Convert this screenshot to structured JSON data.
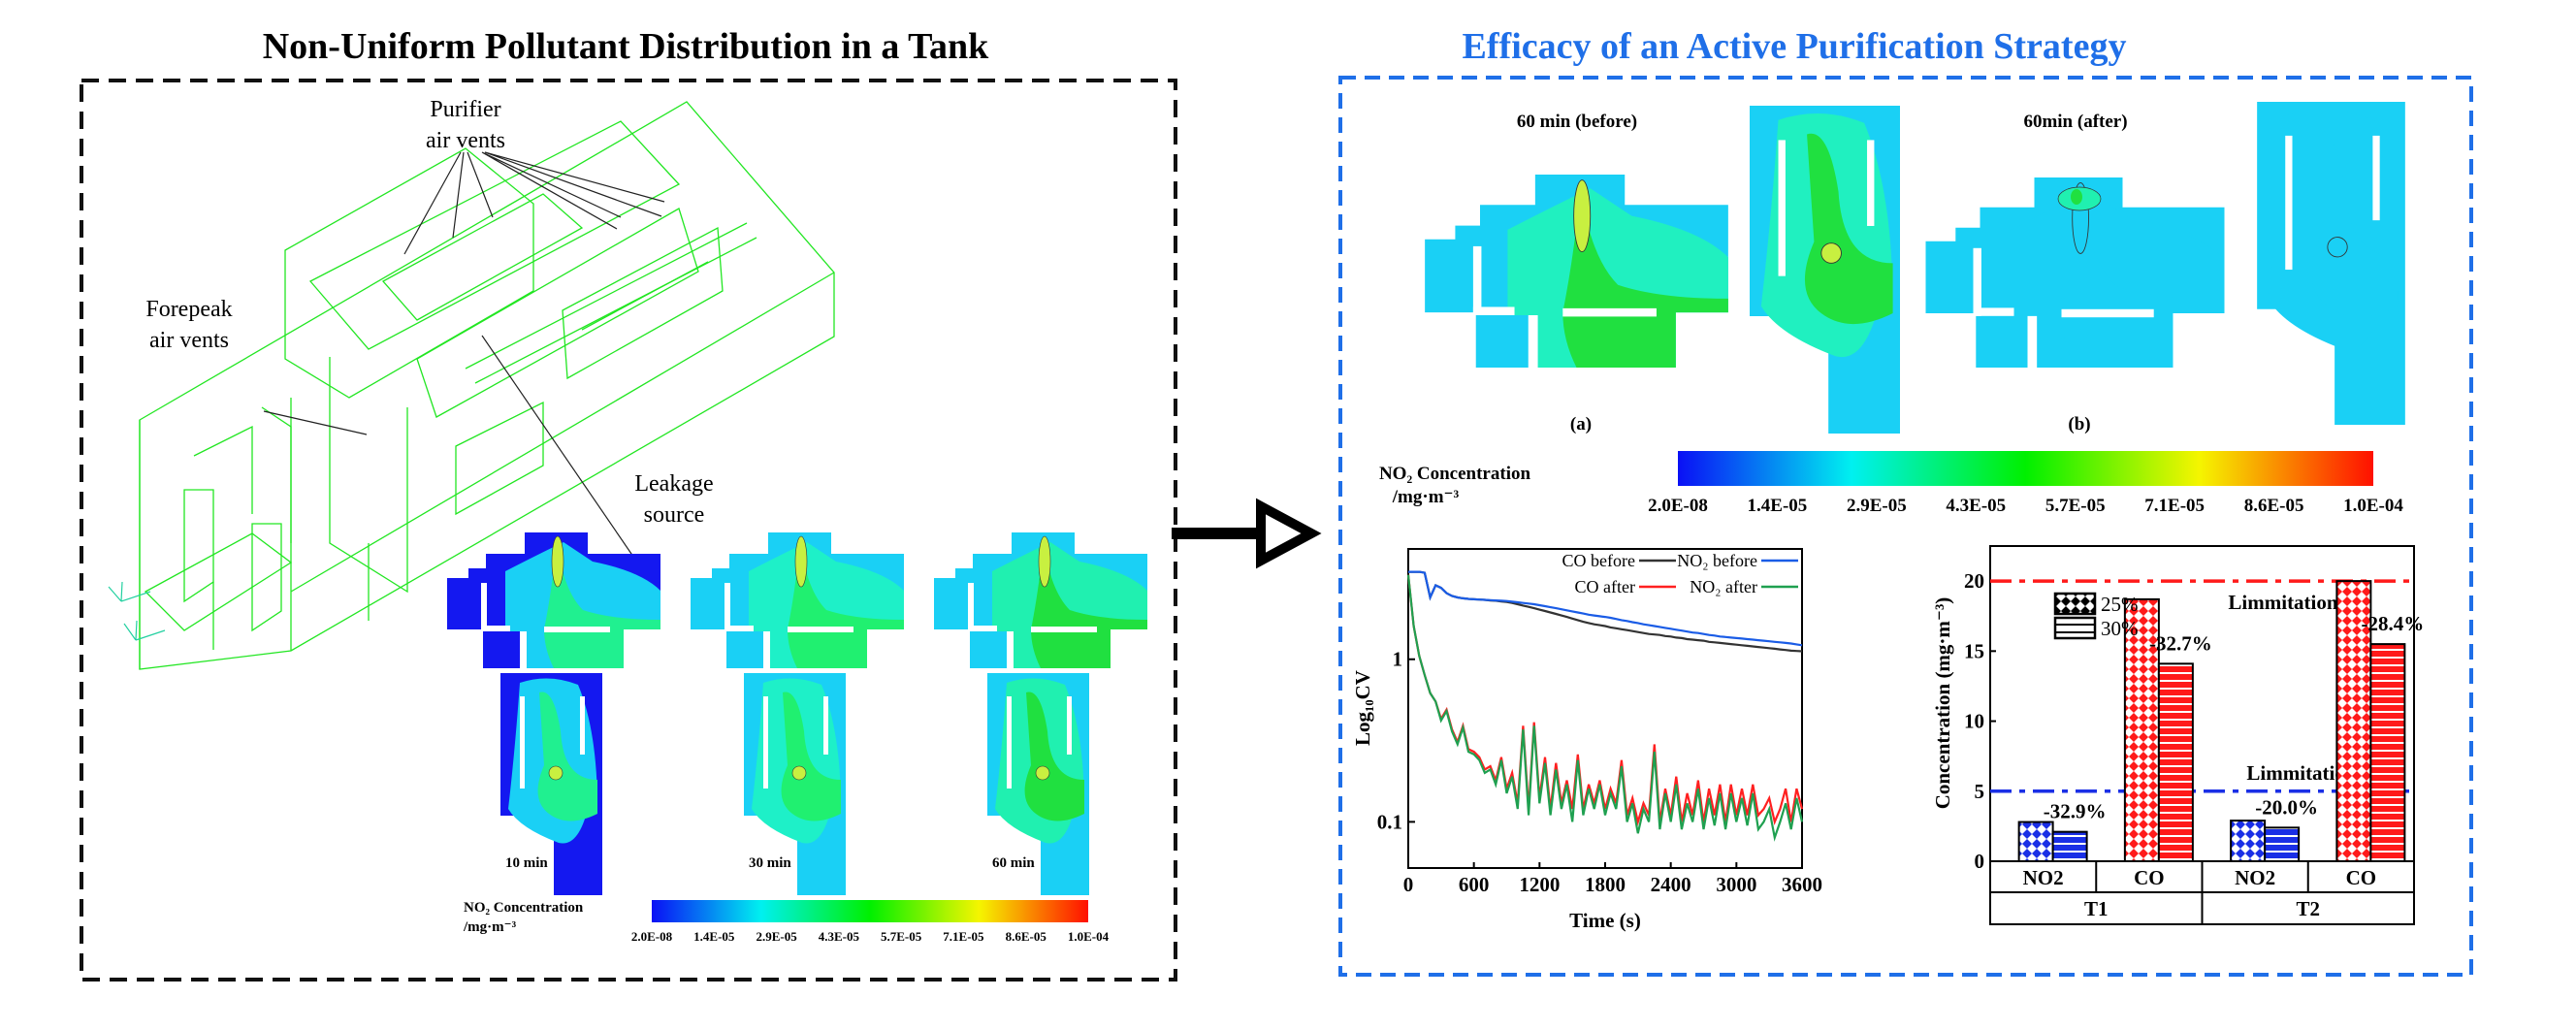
{
  "left_panel": {
    "title": "Non-Uniform Pollutant Distribution in a Tank",
    "labels": {
      "purifier_line1": "Purifier",
      "purifier_line2": "air vents",
      "forepeak_line1": "Forepeak",
      "forepeak_line2": "air vents",
      "leakage_line1": "Leakage",
      "leakage_line2": "source"
    },
    "snapshots": [
      "10 min",
      "30 min",
      "60 min"
    ],
    "colorbar": {
      "title": "NO₂ Concentration",
      "unit": "/mg·m⁻³",
      "ticks": [
        "2.0E-08",
        "1.4E-05",
        "2.9E-05",
        "4.3E-05",
        "5.7E-05",
        "7.1E-05",
        "8.6E-05",
        "1.0E-04"
      ]
    }
  },
  "right_panel": {
    "title": "Efficacy of an Active Purification Strategy",
    "title_color": "#1f6fe8",
    "before_label": "60 min (before)",
    "after_label": "60min (after)",
    "sub_a": "(a)",
    "sub_b": "(b)",
    "colorbar": {
      "title": "NO₂ Concentration",
      "unit": "/mg·m⁻³",
      "ticks": [
        "2.0E-08",
        "1.4E-05",
        "2.9E-05",
        "4.3E-05",
        "5.7E-05",
        "7.1E-05",
        "8.6E-05",
        "1.0E-04"
      ]
    }
  },
  "chart_data": [
    {
      "type": "line",
      "xlabel": "Time (s)",
      "ylabel": "Log₁₀CV",
      "xlim": [
        0,
        3600
      ],
      "ylim": [
        0.052,
        4.77
      ],
      "yscale": "log",
      "xticks": [
        "0",
        "600",
        "1200",
        "1800",
        "2400",
        "3000",
        "3600"
      ],
      "yticks": [
        "1",
        "0.1"
      ],
      "legend_position": "top-right",
      "x": [
        0,
        50,
        100,
        150,
        200,
        250,
        300,
        350,
        400,
        450,
        500,
        550,
        600,
        650,
        700,
        750,
        800,
        850,
        900,
        950,
        1000,
        1050,
        1100,
        1150,
        1200,
        1250,
        1300,
        1350,
        1400,
        1450,
        1500,
        1550,
        1600,
        1650,
        1700,
        1750,
        1800,
        1850,
        1900,
        1950,
        2000,
        2050,
        2100,
        2150,
        2200,
        2250,
        2300,
        2350,
        2400,
        2450,
        2500,
        2550,
        2600,
        2650,
        2700,
        2750,
        2800,
        2850,
        2900,
        2950,
        3000,
        3050,
        3100,
        3150,
        3200,
        3250,
        3300,
        3350,
        3400,
        3450,
        3500,
        3550,
        3600
      ],
      "series": [
        {
          "name": "CO before",
          "color": "#333333",
          "values": [
            3.45,
            3.45,
            3.45,
            3.4,
            2.4,
            2.85,
            2.75,
            2.55,
            2.45,
            2.4,
            2.37,
            2.35,
            2.34,
            2.33,
            2.32,
            2.3,
            2.29,
            2.27,
            2.25,
            2.22,
            2.18,
            2.14,
            2.1,
            2.06,
            2.02,
            1.98,
            1.94,
            1.9,
            1.86,
            1.82,
            1.78,
            1.74,
            1.7,
            1.67,
            1.64,
            1.62,
            1.6,
            1.57,
            1.55,
            1.53,
            1.51,
            1.49,
            1.47,
            1.45,
            1.43,
            1.42,
            1.41,
            1.39,
            1.38,
            1.36,
            1.35,
            1.33,
            1.32,
            1.31,
            1.3,
            1.28,
            1.27,
            1.26,
            1.25,
            1.24,
            1.23,
            1.22,
            1.21,
            1.2,
            1.19,
            1.18,
            1.17,
            1.16,
            1.15,
            1.14,
            1.13,
            1.125,
            1.12
          ]
        },
        {
          "name": "NO₂ before",
          "color": "#1a5ce6",
          "values": [
            3.45,
            3.45,
            3.45,
            3.4,
            2.4,
            2.85,
            2.75,
            2.55,
            2.45,
            2.4,
            2.37,
            2.35,
            2.34,
            2.33,
            2.32,
            2.31,
            2.3,
            2.29,
            2.28,
            2.26,
            2.24,
            2.22,
            2.2,
            2.18,
            2.15,
            2.12,
            2.09,
            2.06,
            2.03,
            2.0,
            1.97,
            1.94,
            1.91,
            1.88,
            1.86,
            1.84,
            1.82,
            1.8,
            1.77,
            1.74,
            1.72,
            1.69,
            1.67,
            1.64,
            1.62,
            1.6,
            1.58,
            1.56,
            1.54,
            1.52,
            1.5,
            1.48,
            1.46,
            1.45,
            1.43,
            1.41,
            1.4,
            1.38,
            1.37,
            1.36,
            1.35,
            1.34,
            1.33,
            1.32,
            1.31,
            1.3,
            1.29,
            1.28,
            1.27,
            1.26,
            1.25,
            1.235,
            1.22
          ]
        },
        {
          "name": "CO after",
          "color": "#ff2020",
          "values": [
            3.3,
            1.6,
            1.05,
            0.8,
            0.62,
            0.55,
            0.43,
            0.49,
            0.37,
            0.31,
            0.39,
            0.28,
            0.27,
            0.25,
            0.21,
            0.22,
            0.18,
            0.25,
            0.16,
            0.2,
            0.13,
            0.39,
            0.12,
            0.41,
            0.14,
            0.25,
            0.12,
            0.23,
            0.13,
            0.18,
            0.12,
            0.26,
            0.12,
            0.17,
            0.13,
            0.18,
            0.12,
            0.16,
            0.13,
            0.24,
            0.11,
            0.14,
            0.1,
            0.13,
            0.11,
            0.3,
            0.1,
            0.16,
            0.11,
            0.19,
            0.1,
            0.15,
            0.11,
            0.18,
            0.1,
            0.16,
            0.11,
            0.17,
            0.1,
            0.17,
            0.11,
            0.16,
            0.11,
            0.17,
            0.11,
            0.12,
            0.14,
            0.1,
            0.12,
            0.16,
            0.1,
            0.16,
            0.12
          ]
        },
        {
          "name": "NO₂ after",
          "color": "#1fa050",
          "values": [
            3.3,
            1.6,
            1.05,
            0.8,
            0.62,
            0.55,
            0.42,
            0.48,
            0.36,
            0.3,
            0.38,
            0.27,
            0.26,
            0.24,
            0.2,
            0.21,
            0.17,
            0.24,
            0.15,
            0.19,
            0.12,
            0.37,
            0.11,
            0.39,
            0.13,
            0.23,
            0.11,
            0.21,
            0.12,
            0.17,
            0.1,
            0.24,
            0.11,
            0.16,
            0.12,
            0.17,
            0.11,
            0.15,
            0.12,
            0.22,
            0.1,
            0.13,
            0.085,
            0.12,
            0.1,
            0.27,
            0.09,
            0.15,
            0.1,
            0.17,
            0.09,
            0.13,
            0.1,
            0.16,
            0.09,
            0.14,
            0.095,
            0.15,
            0.09,
            0.15,
            0.1,
            0.14,
            0.095,
            0.15,
            0.09,
            0.1,
            0.12,
            0.08,
            0.1,
            0.13,
            0.09,
            0.14,
            0.1
          ]
        }
      ]
    },
    {
      "type": "bar",
      "ylabel": "Concentration (mg·m⁻³)",
      "ylim": [
        0,
        22.5
      ],
      "yticks": [
        "0",
        "5",
        "10",
        "15",
        "20"
      ],
      "groups": [
        "T1",
        "T2"
      ],
      "categories": [
        "NO2",
        "CO",
        "NO2",
        "CO"
      ],
      "category_group": [
        "T1",
        "T1",
        "T2",
        "T2"
      ],
      "category_colors": [
        "#1a2fe6",
        "#ff1a1a",
        "#1a2fe6",
        "#ff1a1a"
      ],
      "series": [
        {
          "name": "25%",
          "pattern": "crosshatch",
          "values": [
            2.8,
            18.7,
            2.9,
            20.0
          ]
        },
        {
          "name": "30%",
          "pattern": "horizontal",
          "values": [
            2.1,
            14.1,
            2.4,
            15.5
          ]
        }
      ],
      "reductions": [
        "-32.9%",
        "-32.7%",
        "-20.0%",
        "-28.4%"
      ],
      "limits": [
        {
          "label": "Limmitation",
          "value": 20,
          "color": "#ff1a1a"
        },
        {
          "label": "Limmitation",
          "value": 5,
          "color": "#1a2fe6"
        }
      ],
      "legend_position": "top-left"
    }
  ]
}
